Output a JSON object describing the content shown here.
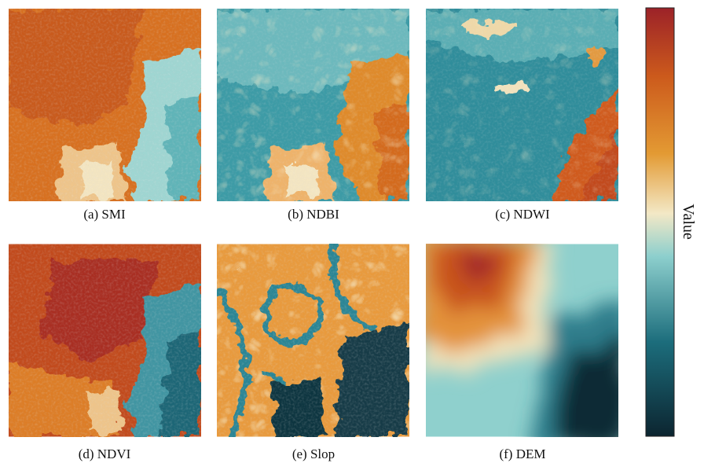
{
  "panels": [
    {
      "caption": "(a) SMI"
    },
    {
      "caption": "(b) NDBI"
    },
    {
      "caption": "(c) NDWI"
    },
    {
      "caption": "(d) NDVI"
    },
    {
      "caption": "(e) Slop"
    },
    {
      "caption": "(f) DEM"
    }
  ],
  "colorbar": {
    "label": "Value"
  }
}
